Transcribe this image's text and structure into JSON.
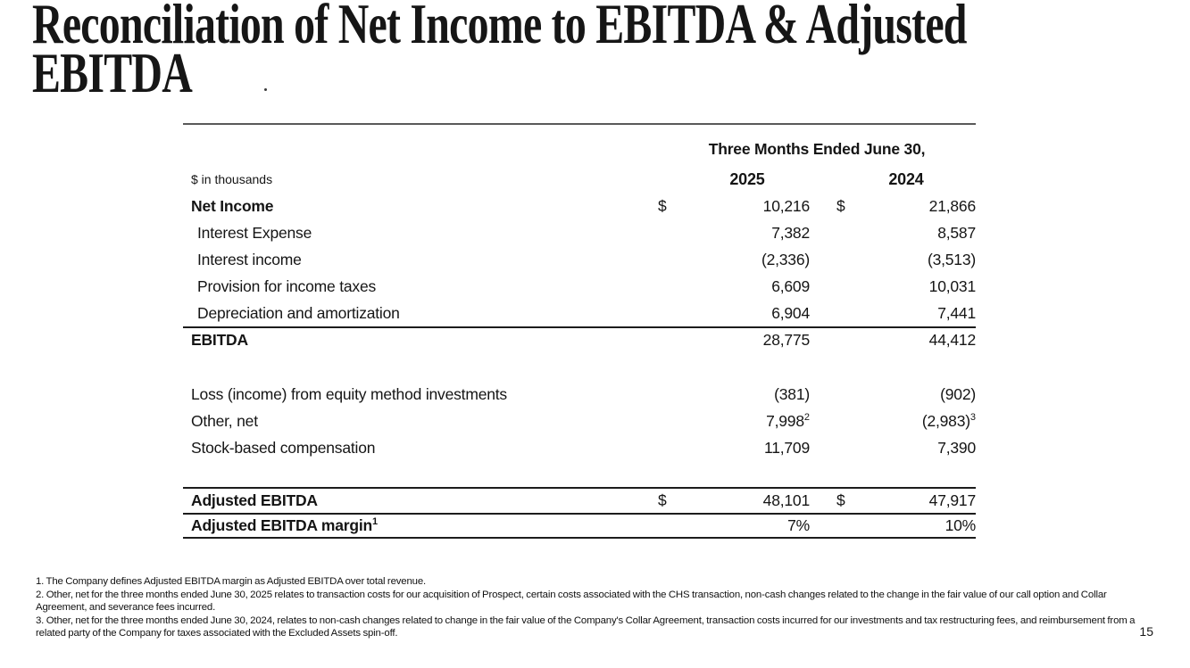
{
  "slide": {
    "title": "Reconciliation of Net Income to EBITDA & Adjusted EBITDA",
    "title_lines": {
      "line1": "Reconciliation of Net Income to EBITDA & Adjusted",
      "line2": "EBITDA"
    },
    "page_number": "15"
  },
  "colors": {
    "background": "#ffffff",
    "text": "#151515",
    "rule_gray": "#595959",
    "rule_dark": "#1c1c1c"
  },
  "table": {
    "span_header": "Three Months Ended June 30,",
    "unit_label": "$ in thousands",
    "col_2025": "2025",
    "col_2024": "2024",
    "currency_symbol": "$",
    "rows": [
      {
        "label": "Net Income",
        "y2025": "10,216",
        "y2024": "21,866"
      },
      {
        "label": "Interest Expense",
        "y2025": "7,382",
        "y2024": "8,587"
      },
      {
        "label": "Interest income",
        "y2025": "(2,336)",
        "y2024": "(3,513)"
      },
      {
        "label": "Provision for income taxes",
        "y2025": "6,609",
        "y2024": "10,031"
      },
      {
        "label": "Depreciation and amortization",
        "y2025": "6,904",
        "y2024": "7,441"
      },
      {
        "label": "EBITDA",
        "y2025": "28,775",
        "y2024": "44,412"
      },
      {
        "label": "Loss (income) from equity method investments",
        "y2025": "(381)",
        "y2024": "(902)"
      },
      {
        "label": "Other, net",
        "y2025": "7,998",
        "y2025_sup": "2",
        "y2024": "(2,983)",
        "y2024_sup": "3"
      },
      {
        "label": "Stock-based compensation",
        "y2025": "11,709",
        "y2024": "7,390"
      },
      {
        "label": "Adjusted EBITDA",
        "y2025": "48,101",
        "y2024": "47,917"
      },
      {
        "label": "Adjusted EBITDA margin",
        "label_sup": "1",
        "y2025": "7%",
        "y2024": "10%"
      }
    ]
  },
  "footnotes": {
    "fn1": "1. The Company defines Adjusted EBITDA margin as Adjusted EBITDA over total revenue.",
    "fn2": "2. Other, net for the three months ended June 30, 2025 relates to transaction costs for our acquisition of Prospect, certain costs associated with the CHS transaction, non-cash changes related to the change in the fair value of our call option and Collar Agreement, and severance fees incurred.",
    "fn3": "3. Other, net for the three months ended June 30, 2024, relates to non-cash changes related to change in the fair value of the Company's Collar Agreement, transaction costs incurred for our investments and tax restructuring fees, and reimbursement from a related party of the Company for taxes associated with the Excluded Assets spin-off."
  }
}
